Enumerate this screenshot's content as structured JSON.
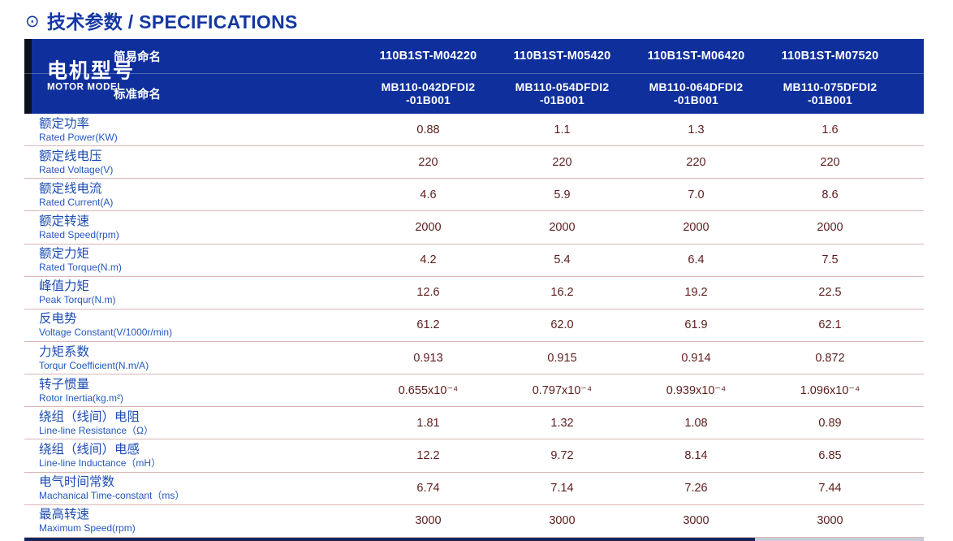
{
  "page": {
    "title_icon": "⊙",
    "title": "技术参数 / SPECIFICATIONS"
  },
  "header": {
    "motor_model_zh": "电机型号",
    "motor_model_en": "MOTOR MODEL",
    "simple_name_label": "简易命名",
    "standard_name_label": "标准命名",
    "simple_names": [
      "110B1ST-M04220",
      "110B1ST-M05420",
      "110B1ST-M06420",
      "110B1ST-M07520"
    ],
    "standard_names": [
      "MB110-042DFDI2\n-01B001",
      "MB110-054DFDI2\n-01B001",
      "MB110-064DFDI2\n-01B001",
      "MB110-075DFDI2\n-01B001"
    ]
  },
  "rows": [
    {
      "label_zh": "额定功率",
      "label_en": "Rated Power(KW)",
      "values": [
        "0.88",
        "1.1",
        "1.3",
        "1.6"
      ]
    },
    {
      "label_zh": "额定线电压",
      "label_en": "Rated Voltage(V)",
      "values": [
        "220",
        "220",
        "220",
        "220"
      ]
    },
    {
      "label_zh": "额定线电流",
      "label_en": "Rated Current(A)",
      "values": [
        "4.6",
        "5.9",
        "7.0",
        "8.6"
      ]
    },
    {
      "label_zh": "额定转速",
      "label_en": "Rated Speed(rpm)",
      "values": [
        "2000",
        "2000",
        "2000",
        "2000"
      ]
    },
    {
      "label_zh": "额定力矩",
      "label_en": "Rated Torque(N.m)",
      "values": [
        "4.2",
        "5.4",
        "6.4",
        "7.5"
      ]
    },
    {
      "label_zh": "峰值力矩",
      "label_en": "Peak Torqur(N.m)",
      "values": [
        "12.6",
        "16.2",
        "19.2",
        "22.5"
      ]
    },
    {
      "label_zh": "反电势",
      "label_en": "Voltage Constant(V/1000r/min)",
      "values": [
        "61.2",
        "62.0",
        "61.9",
        "62.1"
      ]
    },
    {
      "label_zh": "力矩系数",
      "label_en": "Torqur Coefficient(N.m/A)",
      "values": [
        "0.913",
        "0.915",
        "0.914",
        "0.872"
      ]
    },
    {
      "label_zh": "转子惯量",
      "label_en": "Rotor Inertia(kg.m²)",
      "values": [
        "0.655x10⁻⁴",
        "0.797x10⁻⁴",
        "0.939x10⁻⁴",
        "1.096x10⁻⁴"
      ]
    },
    {
      "label_zh": "绕组（线间）电阻",
      "label_en": "Line-line Resistance（Ω）",
      "values": [
        "1.81",
        "1.32",
        "1.08",
        "0.89"
      ]
    },
    {
      "label_zh": "绕组（线间）电感",
      "label_en": "Line-line Inductance（mH）",
      "values": [
        "12.2",
        "9.72",
        "8.14",
        "6.85"
      ]
    },
    {
      "label_zh": "电气时间常数",
      "label_en": "Machanical Time-constant（ms）",
      "values": [
        "6.74",
        "7.14",
        "7.26",
        "7.44"
      ]
    },
    {
      "label_zh": "最高转速",
      "label_en": "Maximum Speed(rpm)",
      "values": [
        "3000",
        "3000",
        "3000",
        "3000"
      ]
    }
  ],
  "colors": {
    "header_blue": "#0e2f9c",
    "title_blue": "#1437a3",
    "label_blue": "#1c4db3",
    "value_maroon": "#5d1c1c",
    "divider_rose": "#d9b6b6"
  }
}
